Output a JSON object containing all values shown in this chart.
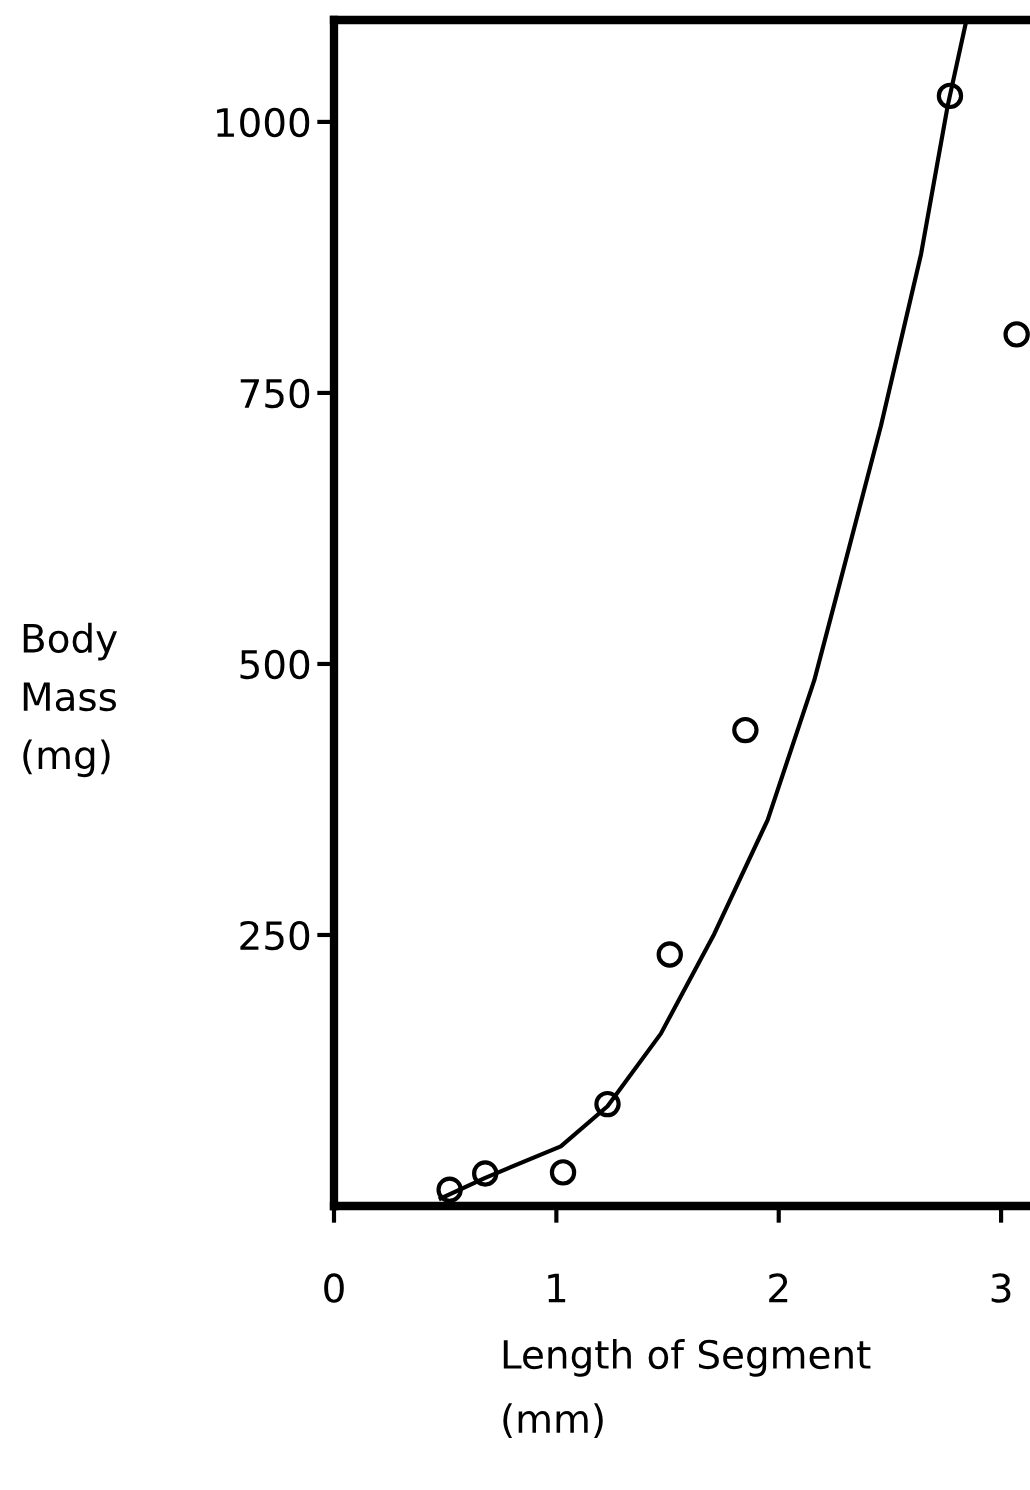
{
  "chart_data": {
    "type": "scatter",
    "xlabel": "Length of Segment\n(mm)",
    "ylabel": "Body\nMass\n(mg)",
    "xlim": [
      0,
      3.13
    ],
    "ylim": [
      0,
      1094
    ],
    "xticks": [
      {
        "value": 0,
        "label": "0"
      },
      1,
      2,
      3
    ],
    "yticks": [
      250,
      500,
      750,
      1000
    ],
    "grid": false,
    "legend": false,
    "marker": "circle",
    "series": [
      {
        "color": "#000000",
        "x": [
          0.52,
          0.68,
          1.03,
          1.23,
          1.51,
          1.85,
          2.77,
          3.07
        ],
        "values": [
          15,
          30,
          31,
          94,
          232,
          439,
          1024,
          804
        ]
      },
      {
        "type": "line",
        "color": "#000000",
        "line_style": "solid",
        "marker": "none",
        "x": [
          0.48,
          0.68,
          1.02,
          1.23,
          1.47,
          1.71,
          1.95,
          2.16,
          2.26,
          2.46,
          2.64,
          2.76,
          2.84
        ],
        "values": [
          7,
          26,
          55,
          92,
          159,
          251,
          356,
          485,
          563,
          720,
          878,
          1015,
          1090
        ]
      }
    ]
  }
}
